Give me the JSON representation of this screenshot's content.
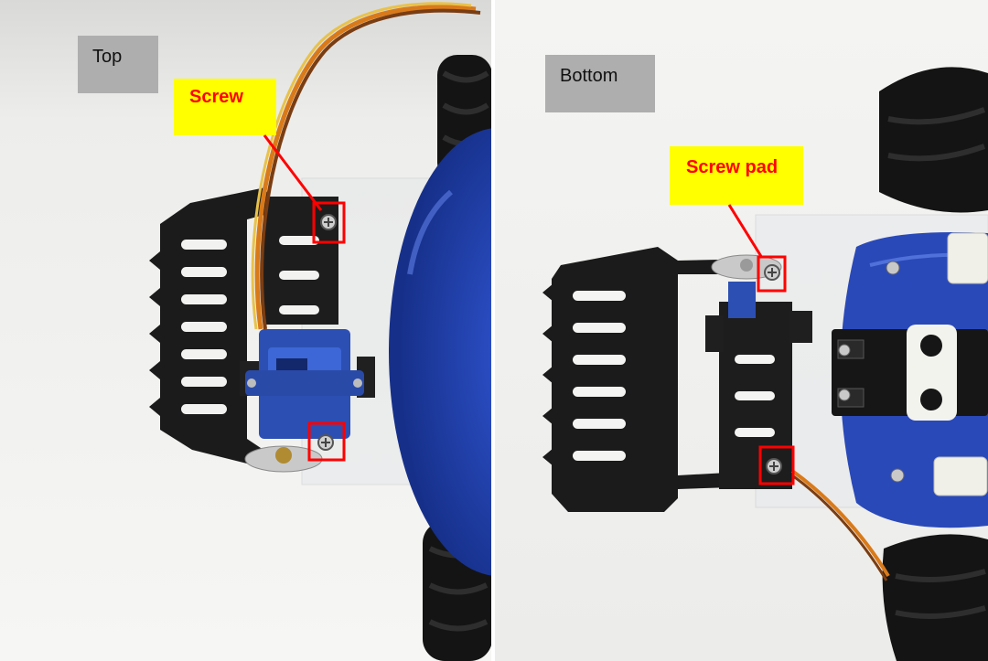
{
  "panels": {
    "top": {
      "label": "Top",
      "callout": "Screw"
    },
    "bottom": {
      "label": "Bottom",
      "callout": "Screw pad"
    }
  },
  "colors": {
    "label_box": "#aeaeae",
    "callout_bg": "#ffff00",
    "callout_text": "#ff0000",
    "highlight": "#ff0000",
    "bracket": "#1b1b1b",
    "servo": "#2c4fb3",
    "car_body": "#1f3fa6",
    "background": "#f2f2f0"
  }
}
